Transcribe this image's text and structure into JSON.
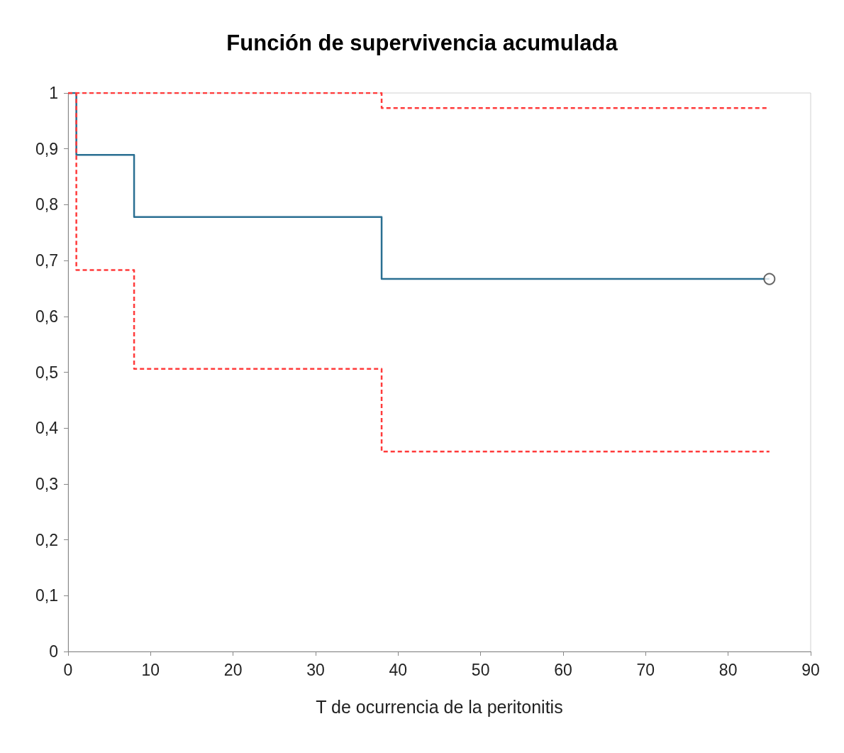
{
  "chart_data": {
    "type": "step",
    "title": "Función de supervivencia acumulada",
    "xlabel": "T de ocurrencia de la peritonitis",
    "xlim": [
      0,
      90
    ],
    "xticks": [
      0,
      10,
      20,
      30,
      40,
      50,
      60,
      70,
      80,
      90
    ],
    "ylim": [
      0,
      1
    ],
    "yticks": [
      0,
      {
        "value": 0.1,
        "label": "0,1"
      },
      {
        "value": 0.2,
        "label": "0,2"
      },
      {
        "value": 0.3,
        "label": "0,3"
      },
      {
        "value": 0.4,
        "label": "0,4"
      },
      {
        "value": 0.5,
        "label": "0,5"
      },
      {
        "value": 0.6,
        "label": "0,6"
      },
      {
        "value": 0.7,
        "label": "0,7"
      },
      {
        "value": 0.8,
        "label": "0,8"
      },
      {
        "value": 0.9,
        "label": "0,9"
      },
      1
    ],
    "grid": false,
    "series": [
      {
        "x": [
          0,
          1,
          8,
          38,
          85
        ],
        "values": [
          1,
          0.889,
          0.778,
          0.667,
          0.667
        ],
        "color": "#2a6f92",
        "line_style": "solid",
        "marker": "none"
      },
      {
        "x": [
          0,
          38,
          85
        ],
        "values": [
          1,
          0.973,
          0.973
        ],
        "color": "#ff3b3b",
        "line_style": "dashed",
        "marker": "none"
      },
      {
        "x": [
          0,
          1,
          8,
          38,
          85
        ],
        "values": [
          1,
          0.683,
          0.506,
          0.358,
          0.358
        ],
        "color": "#ff3b3b",
        "line_style": "dashed",
        "marker": "none"
      },
      {
        "type": "scatter",
        "x": [
          85
        ],
        "values": [
          0.667
        ],
        "color": "#ffffff",
        "marker": "circle"
      }
    ]
  }
}
